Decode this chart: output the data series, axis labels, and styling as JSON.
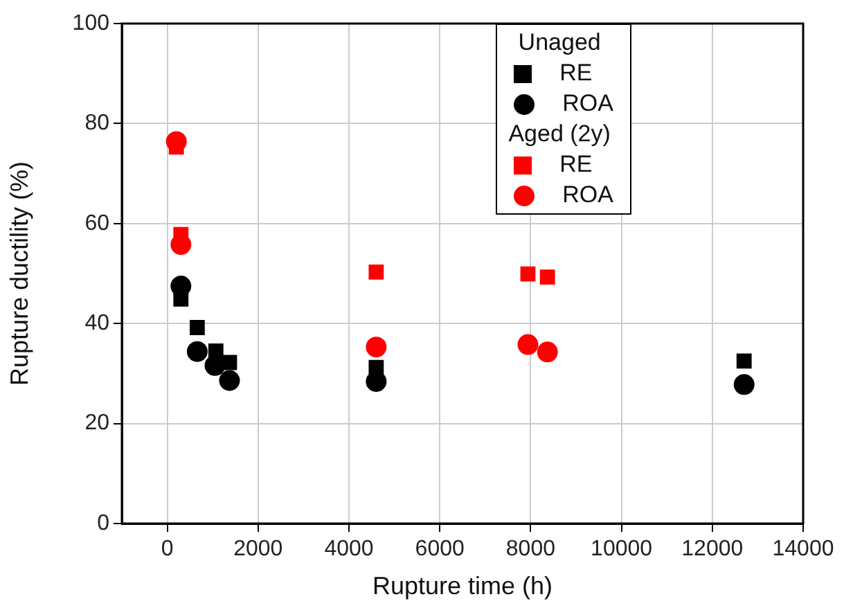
{
  "chart_data": {
    "type": "scatter",
    "xlabel": "Rupture time (h)",
    "ylabel": "Rupture ductility (%)",
    "xlim": [
      -1000,
      14000
    ],
    "xticks": [
      0,
      2000,
      4000,
      6000,
      8000,
      10000,
      12000,
      14000
    ],
    "ylim": [
      0,
      100
    ],
    "yticks": [
      0,
      20,
      40,
      60,
      80,
      100
    ],
    "grid": true,
    "legend": "top right",
    "annotations": [
      "Unaged",
      "Aged (2y)"
    ],
    "series": [
      {
        "name": "RE",
        "color": "#000000",
        "marker": "square",
        "x": [
          300,
          660,
          1070,
          1370,
          4600,
          12700
        ],
        "values": [
          44.9,
          39.2,
          34.5,
          32.2,
          31.2,
          32.5
        ]
      },
      {
        "name": "ROA",
        "color": "#000000",
        "marker": "circle",
        "x": [
          300,
          660,
          1050,
          1370,
          4600,
          12700
        ],
        "values": [
          47.5,
          34.4,
          31.6,
          28.6,
          28.4,
          27.8
        ]
      },
      {
        "name": "RE",
        "color": "#ff0000",
        "marker": "square",
        "x": [
          200,
          300,
          4600,
          7940,
          8370
        ],
        "values": [
          75.3,
          57.8,
          50.3,
          49.9,
          49.3
        ]
      },
      {
        "name": "ROA",
        "color": "#ff0000",
        "marker": "circle",
        "x": [
          200,
          300,
          4600,
          7940,
          8370
        ],
        "values": [
          76.4,
          55.8,
          35.3,
          35.8,
          34.3
        ]
      }
    ]
  }
}
